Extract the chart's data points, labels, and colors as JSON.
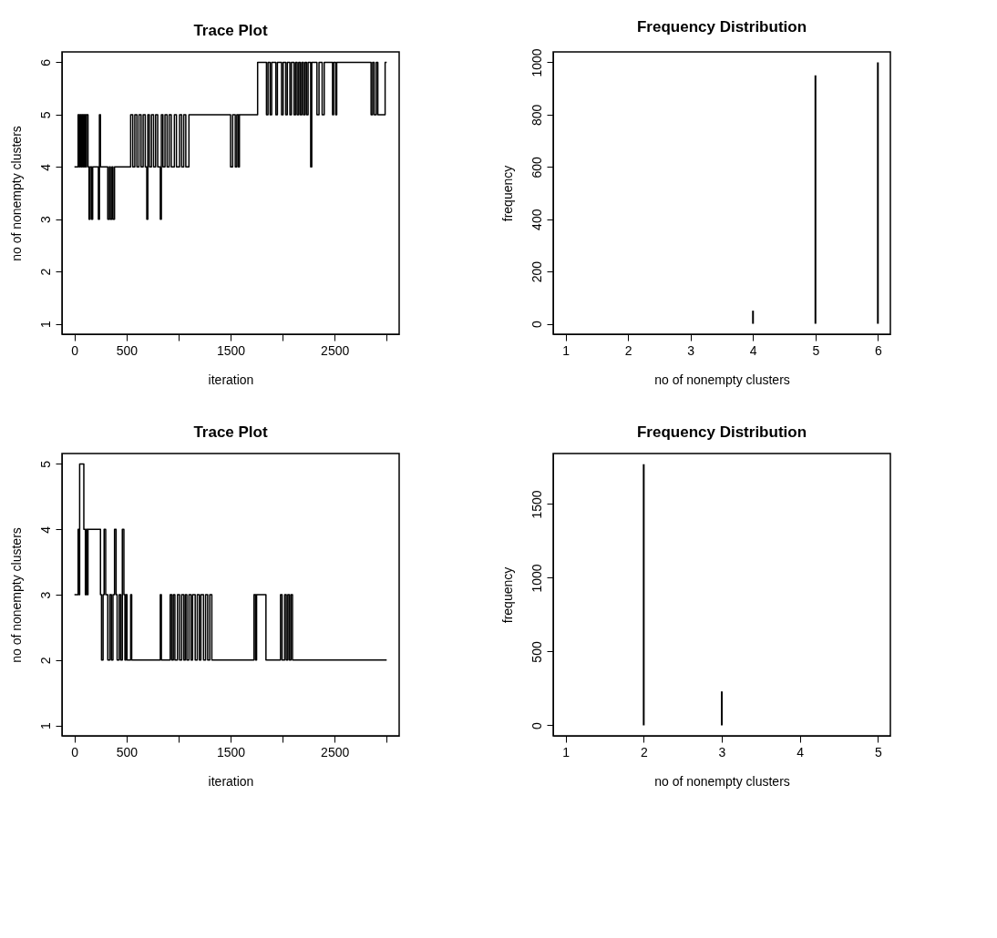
{
  "chart_data": [
    {
      "type": "step",
      "title": "Trace Plot",
      "xlabel": "iteration",
      "ylabel": "no of nonempty clusters",
      "grid": false,
      "xlim": [
        -120,
        3120
      ],
      "ylim": [
        0.8,
        6.2
      ],
      "xticks": [
        0,
        500,
        {
          "value": 1000,
          "label": null
        },
        1500,
        {
          "value": 2000,
          "label": null
        },
        2500,
        {
          "value": 3000,
          "label": null
        }
      ],
      "yticks": [
        1,
        2,
        3,
        4,
        5,
        6
      ],
      "series": [
        {
          "color": "#000000",
          "x": [
            0,
            35,
            45,
            55,
            65,
            75,
            85,
            95,
            105,
            115,
            130,
            140,
            150,
            165,
            175,
            230,
            240,
            250,
            320,
            335,
            345,
            360,
            370,
            385,
            540,
            560,
            580,
            600,
            620,
            640,
            660,
            680,
            695,
            705,
            720,
            740,
            760,
            780,
            800,
            825,
            835,
            850,
            870,
            890,
            910,
            930,
            960,
            980,
            1010,
            1030,
            1050,
            1070,
            1100,
            1500,
            1520,
            1545,
            1560,
            1575,
            1585,
            1760,
            1845,
            1860,
            1880,
            1895,
            1935,
            1950,
            1990,
            2005,
            2030,
            2045,
            2070,
            2085,
            2110,
            2125,
            2140,
            2155,
            2170,
            2185,
            2200,
            2215,
            2230,
            2245,
            2270,
            2280,
            2330,
            2350,
            2380,
            2400,
            2480,
            2490,
            2510,
            2520,
            2850,
            2865,
            2880,
            2900,
            2915,
            2985,
            3000
          ],
          "values": [
            4,
            5,
            4,
            5,
            4,
            5,
            4,
            5,
            4,
            5,
            4,
            3,
            4,
            3,
            4,
            3,
            5,
            4,
            3,
            4,
            3,
            4,
            3,
            4,
            5,
            4,
            5,
            4,
            5,
            4,
            5,
            4,
            3,
            5,
            4,
            5,
            4,
            5,
            4,
            3,
            5,
            4,
            5,
            4,
            5,
            4,
            5,
            4,
            5,
            4,
            5,
            4,
            5,
            4,
            5,
            4,
            5,
            4,
            5,
            6,
            5,
            6,
            5,
            6,
            5,
            6,
            5,
            6,
            5,
            6,
            5,
            6,
            5,
            6,
            5,
            6,
            5,
            6,
            5,
            6,
            5,
            6,
            4,
            6,
            5,
            6,
            5,
            6,
            5,
            6,
            5,
            6,
            5,
            6,
            5,
            6,
            5,
            6,
            6
          ]
        }
      ]
    },
    {
      "type": "bar",
      "title": "Frequency Distribution",
      "xlabel": "no of nonempty clusters",
      "ylabel": "frequency",
      "grid": false,
      "xlim": [
        0.8,
        6.2
      ],
      "ylim": [
        -40,
        1040
      ],
      "xticks": [
        1,
        2,
        3,
        4,
        5,
        6
      ],
      "yticks": [
        0,
        200,
        400,
        600,
        800,
        1000
      ],
      "x": [
        1,
        2,
        3,
        4,
        5,
        6
      ],
      "values": [
        0,
        0,
        0,
        50,
        950,
        1000
      ],
      "color": "#000000"
    },
    {
      "type": "step",
      "title": "Trace Plot",
      "xlabel": "iteration",
      "ylabel": "no of nonempty clusters",
      "grid": false,
      "xlim": [
        -120,
        3120
      ],
      "ylim": [
        0.84,
        5.16
      ],
      "xticks": [
        0,
        500,
        {
          "value": 1000,
          "label": null
        },
        1500,
        {
          "value": 2000,
          "label": null
        },
        2500,
        {
          "value": 3000,
          "label": null
        }
      ],
      "yticks": [
        1,
        2,
        3,
        4,
        5
      ],
      "series": [
        {
          "color": "#000000",
          "x": [
            0,
            35,
            45,
            50,
            90,
            105,
            115,
            125,
            130,
            250,
            260,
            275,
            285,
            300,
            320,
            340,
            355,
            370,
            385,
            400,
            410,
            430,
            445,
            460,
            475,
            485,
            495,
            505,
            540,
            550,
            825,
            835,
            920,
            935,
            950,
            965,
            990,
            1010,
            1030,
            1050,
            1065,
            1080,
            1100,
            1120,
            1135,
            1160,
            1180,
            1200,
            1215,
            1240,
            1260,
            1280,
            1300,
            1320,
            1725,
            1740,
            1750,
            1840,
            1980,
            1995,
            2020,
            2035,
            2050,
            2065,
            2080,
            2095,
            3000
          ],
          "values": [
            3,
            4,
            3,
            5,
            4,
            3,
            4,
            3,
            4,
            3,
            2,
            3,
            4,
            3,
            2,
            3,
            2,
            3,
            4,
            3,
            2,
            3,
            2,
            4,
            3,
            2,
            3,
            2,
            3,
            2,
            3,
            2,
            3,
            2,
            3,
            2,
            3,
            2,
            3,
            2,
            3,
            2,
            3,
            2,
            3,
            2,
            3,
            2,
            3,
            2,
            3,
            2,
            3,
            2,
            3,
            2,
            3,
            2,
            3,
            2,
            3,
            2,
            3,
            2,
            3,
            2,
            2
          ]
        }
      ]
    },
    {
      "type": "bar",
      "title": "Frequency Distribution",
      "xlabel": "no of nonempty clusters",
      "ylabel": "frequency",
      "grid": false,
      "xlim": [
        0.84,
        5.16
      ],
      "ylim": [
        -71,
        1842
      ],
      "xticks": [
        1,
        2,
        3,
        4,
        5
      ],
      "yticks": [
        0,
        500,
        1000,
        1500
      ],
      "x": [
        1,
        2,
        3,
        4,
        5
      ],
      "values": [
        0,
        1770,
        230,
        0,
        0
      ],
      "color": "#000000"
    }
  ]
}
